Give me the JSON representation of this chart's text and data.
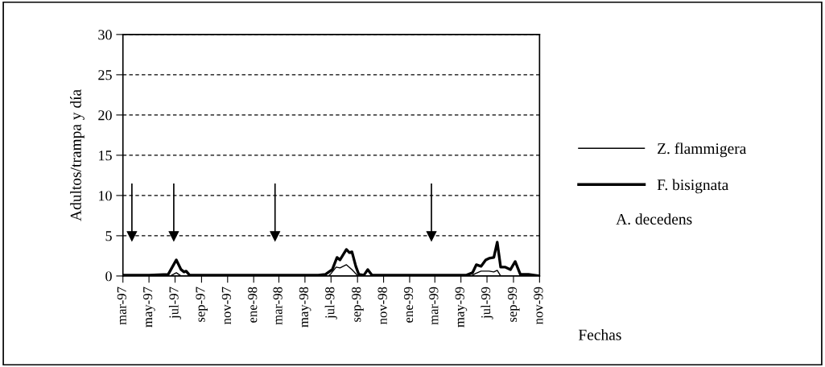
{
  "chart_data": {
    "type": "line",
    "xlabel": "Fechas",
    "ylabel": "Adultos/trampa y día",
    "xlim": [
      "1997-03-01",
      "1999-11-01"
    ],
    "xticks": [
      {
        "value": "1997-03-01",
        "label": "mar-97"
      },
      {
        "value": "1997-05-01",
        "label": "may-97"
      },
      {
        "value": "1997-07-01",
        "label": "jul-97"
      },
      {
        "value": "1997-09-01",
        "label": "sep-97"
      },
      {
        "value": "1997-11-01",
        "label": "nov-97"
      },
      {
        "value": "1998-01-01",
        "label": "ene-98"
      },
      {
        "value": "1998-03-01",
        "label": "mar-98"
      },
      {
        "value": "1998-05-01",
        "label": "may-98"
      },
      {
        "value": "1998-07-01",
        "label": "jul-98"
      },
      {
        "value": "1998-09-01",
        "label": "sep-98"
      },
      {
        "value": "1998-11-01",
        "label": "nov-98"
      },
      {
        "value": "1999-01-01",
        "label": "ene-99"
      },
      {
        "value": "1999-03-01",
        "label": "mar-99"
      },
      {
        "value": "1999-05-01",
        "label": "may-99"
      },
      {
        "value": "1999-07-01",
        "label": "jul-99"
      },
      {
        "value": "1999-09-01",
        "label": "sep-99"
      },
      {
        "value": "1999-11-01",
        "label": "nov-99"
      }
    ],
    "ylim": [
      0,
      30
    ],
    "yticks": [
      0,
      5,
      10,
      15,
      20,
      25,
      30
    ],
    "grid": "y",
    "legend": "right",
    "marker": "none",
    "line_style": "solid",
    "series": [
      {
        "name": "Z. flammigera",
        "color": "#000000",
        "x": [
          "1997-03-01",
          "1997-06-20",
          "1997-07-04",
          "1997-07-15",
          "1998-06-25",
          "1998-07-01",
          "1998-07-13",
          "1998-07-22",
          "1998-08-06",
          "1998-08-19",
          "1998-09-02",
          "1999-05-25",
          "1999-06-04",
          "1999-06-17",
          "1999-07-06",
          "1999-07-17",
          "1999-07-25",
          "1999-08-02",
          "1999-11-01"
        ],
        "values": [
          0,
          0,
          0.4,
          0,
          0,
          0.3,
          1.1,
          1.0,
          1.4,
          0.8,
          0,
          0,
          0.3,
          0.6,
          0.6,
          0.5,
          0.7,
          0,
          0
        ]
      },
      {
        "name": "F. bisignata",
        "color": "#000000",
        "x": [
          "1997-03-01",
          "1997-05-01",
          "1997-06-15",
          "1997-07-04",
          "1997-07-15",
          "1997-07-22",
          "1997-07-27",
          "1997-08-04",
          "1997-12-01",
          "1998-06-01",
          "1998-06-18",
          "1998-07-04",
          "1998-07-15",
          "1998-07-22",
          "1998-08-06",
          "1998-08-13",
          "1998-08-19",
          "1998-08-28",
          "1998-09-04",
          "1998-09-16",
          "1998-09-25",
          "1998-10-05",
          "1999-02-01",
          "1999-05-14",
          "1999-05-28",
          "1999-06-06",
          "1999-06-17",
          "1999-06-28",
          "1999-07-06",
          "1999-07-17",
          "1999-07-25",
          "1999-08-02",
          "1999-08-13",
          "1999-08-25",
          "1999-09-05",
          "1999-09-17",
          "1999-10-06",
          "1999-11-01"
        ],
        "values": [
          0.1,
          0.1,
          0.2,
          2.0,
          0.8,
          0.5,
          0.6,
          0.1,
          0.1,
          0.1,
          0.2,
          0.8,
          2.3,
          2.0,
          3.3,
          2.9,
          3.0,
          1.2,
          0.2,
          0.1,
          0.8,
          0.1,
          0.1,
          0.1,
          0.4,
          1.4,
          1.2,
          2.0,
          2.2,
          2.3,
          4.2,
          1.1,
          1.1,
          0.8,
          1.8,
          0.2,
          0.2,
          0
        ]
      }
    ],
    "ref_lines": [
      {
        "axis": "x",
        "value": "1997-03-22"
      },
      {
        "axis": "x",
        "value": "1997-06-28"
      },
      {
        "axis": "x",
        "value": "1998-02-20"
      },
      {
        "axis": "x",
        "value": "1999-02-21"
      }
    ],
    "annotations": [
      "A. decedens"
    ]
  }
}
